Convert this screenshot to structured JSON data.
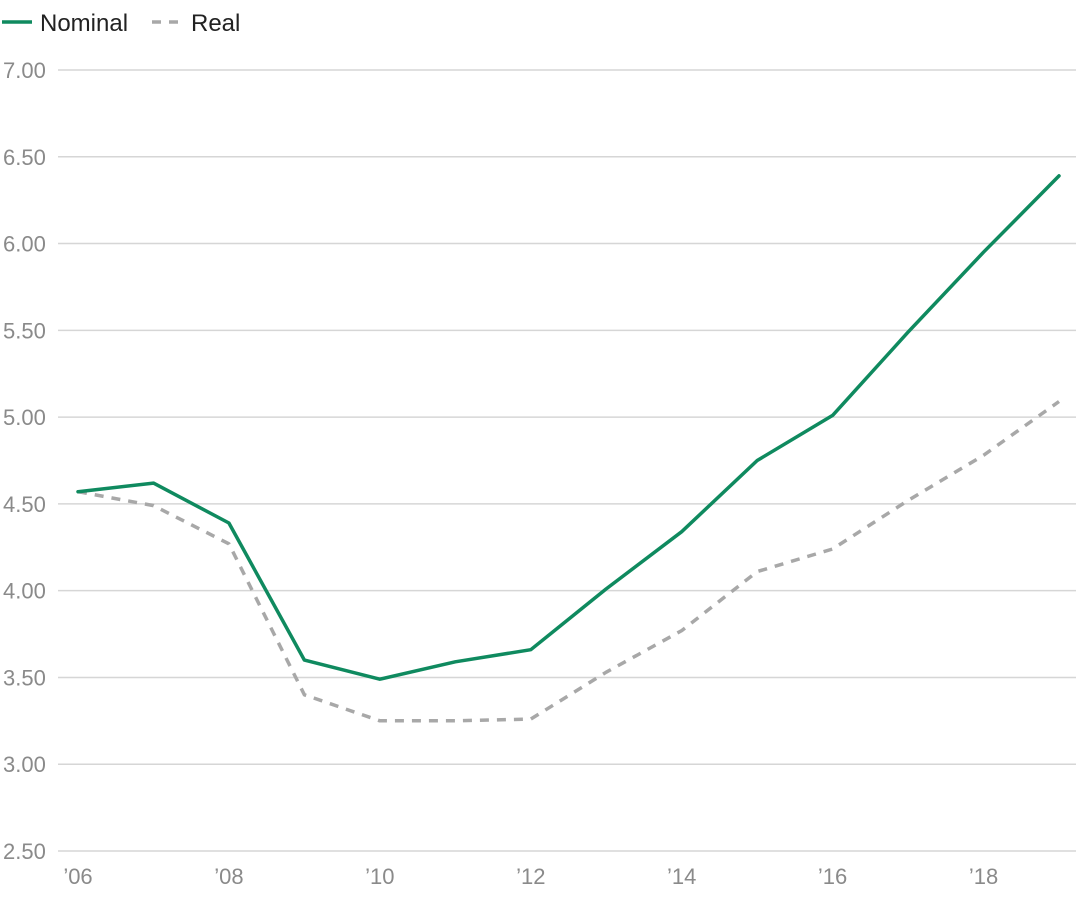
{
  "chart_data": {
    "type": "line",
    "title": "",
    "xlabel": "",
    "ylabel": "",
    "x": [
      2006,
      2007,
      2008,
      2009,
      2010,
      2011,
      2012,
      2013,
      2014,
      2015,
      2016,
      2017,
      2018,
      2019
    ],
    "xlim": [
      2006,
      2019
    ],
    "x_ticks": [
      2006,
      2008,
      2010,
      2012,
      2014,
      2016,
      2018
    ],
    "x_tick_labels": [
      "’06",
      "’08",
      "’10",
      "’12",
      "’14",
      "’16",
      "’18"
    ],
    "ylim": [
      2.5,
      7.0
    ],
    "y_ticks": [
      2.5,
      3.0,
      3.5,
      4.0,
      4.5,
      5.0,
      5.5,
      6.0,
      6.5,
      7.0
    ],
    "y_tick_labels": [
      "2.50",
      "3.00",
      "3.50",
      "4.00",
      "4.50",
      "5.00",
      "5.50",
      "6.00",
      "6.50",
      "7.00"
    ],
    "grid": true,
    "legend_position": "top-left",
    "series": [
      {
        "name": "Nominal",
        "color": "#0f8a5f",
        "style": "solid",
        "values": [
          4.57,
          4.62,
          4.39,
          3.6,
          3.49,
          3.59,
          3.66,
          4.01,
          4.34,
          4.75,
          5.01,
          5.49,
          5.95,
          6.39
        ]
      },
      {
        "name": "Real",
        "color": "#a8a8a8",
        "style": "dashed",
        "values": [
          4.57,
          4.49,
          4.27,
          3.4,
          3.25,
          3.25,
          3.26,
          3.53,
          3.77,
          4.11,
          4.24,
          4.52,
          4.78,
          5.09
        ]
      }
    ]
  }
}
